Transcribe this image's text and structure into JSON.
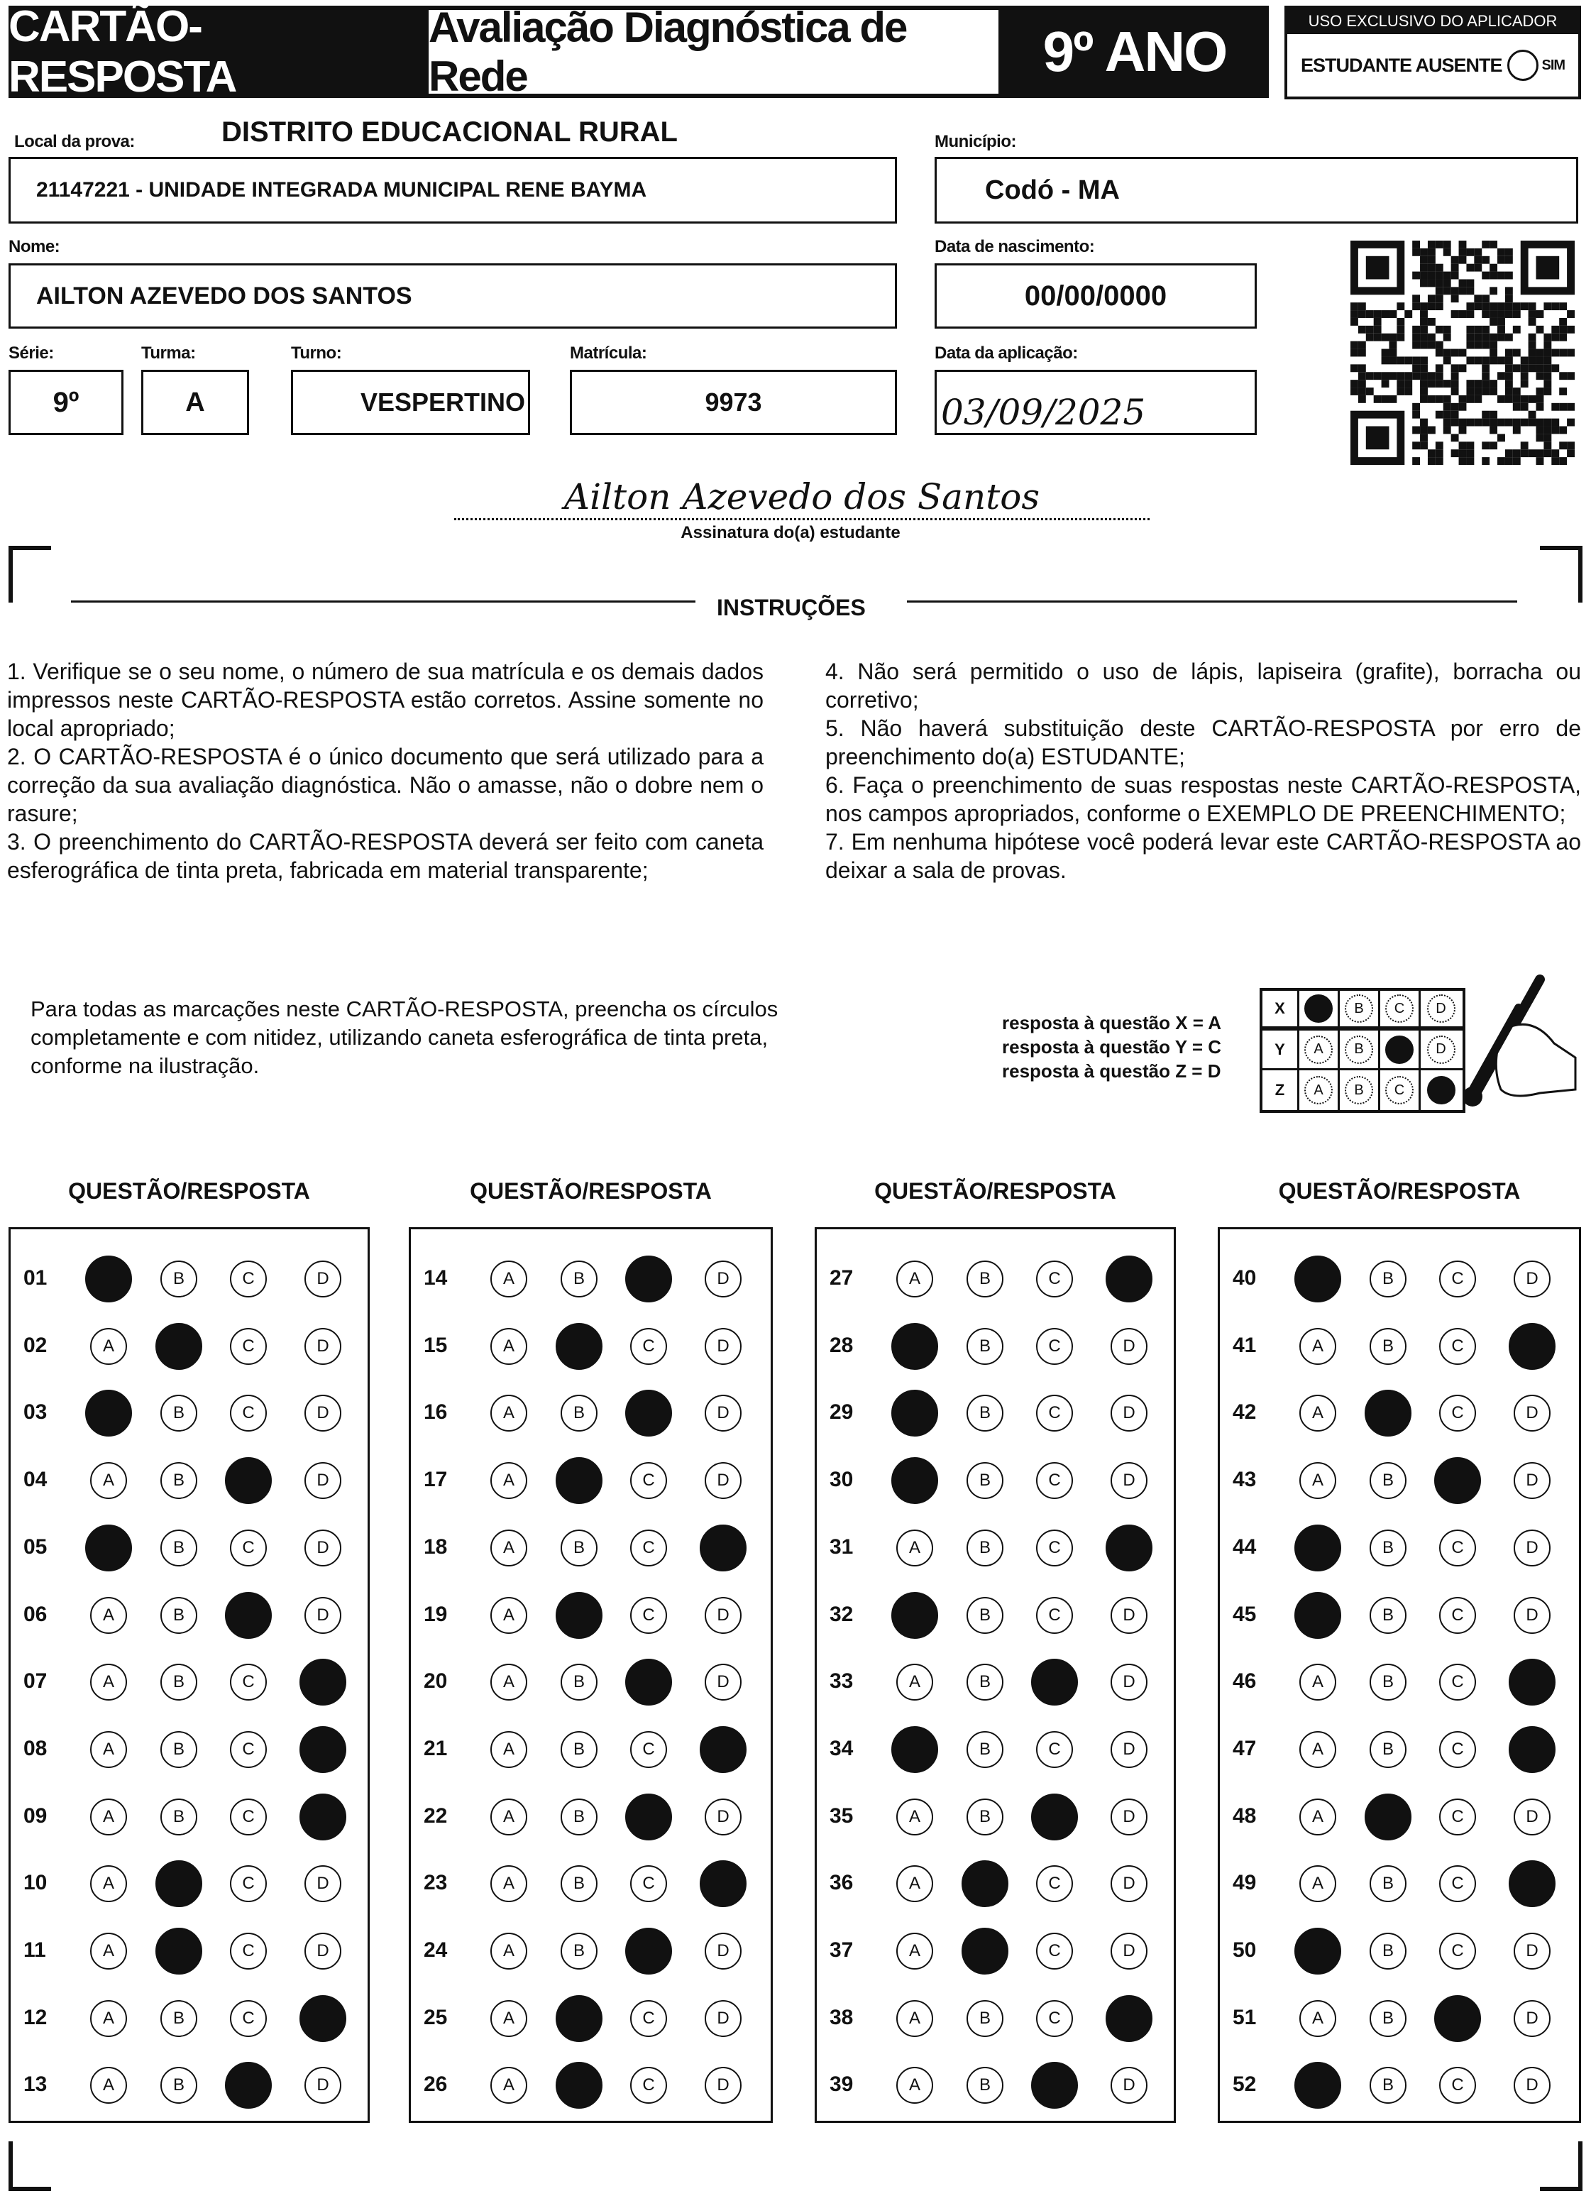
{
  "header": {
    "card_label": "CARTÃO-RESPOSTA",
    "title": "Avaliação Diagnóstica de Rede",
    "grade": "9º ANO",
    "applicator": {
      "title": "USO EXCLUSIVO DO APLICADOR",
      "absent_label": "ESTUDANTE AUSENTE",
      "option": "SIM"
    }
  },
  "fields": {
    "district": "DISTRITO EDUCACIONAL RURAL",
    "local_label": "Local da prova:",
    "local_value": "21147221 - UNIDADE INTEGRADA MUNICIPAL RENE BAYMA",
    "municipio_label": "Município:",
    "municipio_value": "Codó - MA",
    "nome_label": "Nome:",
    "nome_value": "AILTON AZEVEDO DOS SANTOS",
    "nascimento_label": "Data de nascimento:",
    "nascimento_value": "00/00/0000",
    "serie_label": "Série:",
    "serie_value": "9º",
    "turma_label": "Turma:",
    "turma_value": "A",
    "turno_label": "Turno:",
    "turno_value": "VESPERTINO",
    "matricula_label": "Matrícula:",
    "matricula_value": "9973",
    "aplicacao_label": "Data da aplicação:",
    "aplicacao_value": "03/09/2025"
  },
  "signature": {
    "value": "Ailton Azevedo dos Santos",
    "label": "Assinatura do(a) estudante"
  },
  "instructions": {
    "title": "INSTRUÇÕES",
    "left": [
      "1. Verifique se o seu nome, o número de sua matrícula e os demais dados impressos neste CARTÃO-RESPOSTA estão corretos. Assine somente no local apropriado;",
      "2. O CARTÃO-RESPOSTA é o único documento que será utilizado para a correção da sua avaliação diagnóstica. Não o amasse, não o dobre nem o rasure;",
      "3. O preenchimento do CARTÃO-RESPOSTA deverá ser feito com caneta esferográfica de tinta preta, fabricada em material transparente;"
    ],
    "right": [
      "4. Não será permitido o uso de lápis, lapiseira (grafite), borracha ou corretivo;",
      "5. Não haverá substituição deste CARTÃO-RESPOSTA por erro de preenchimento do(a) ESTUDANTE;",
      "6. Faça o preenchimento de suas respostas neste CARTÃO-RESPOSTA, nos campos apropriados, conforme o EXEMPLO DE PREENCHIMENTO;",
      "7. Em nenhuma hipótese você poderá levar este CARTÃO-RESPOSTA ao deixar a sala de provas."
    ]
  },
  "example": {
    "text": "Para todas as marcações neste CARTÃO-RESPOSTA, preencha os círculos completamente e com nitidez, utilizando caneta esferográfica de tinta preta, conforme na ilustração.",
    "lines": [
      "resposta à questão X = A",
      "resposta à questão Y = C",
      "resposta à questão Z = D"
    ],
    "rows": [
      {
        "q": "X",
        "marked": "A"
      },
      {
        "q": "Y",
        "marked": "C"
      },
      {
        "q": "Z",
        "marked": "D"
      }
    ]
  },
  "options": [
    "A",
    "B",
    "C",
    "D"
  ],
  "answer_columns": [
    {
      "header": "QUESTÃO/RESPOSTA",
      "items": [
        {
          "q": "01",
          "marked": "A"
        },
        {
          "q": "02",
          "marked": "B"
        },
        {
          "q": "03",
          "marked": "A"
        },
        {
          "q": "04",
          "marked": "C"
        },
        {
          "q": "05",
          "marked": "A"
        },
        {
          "q": "06",
          "marked": "C"
        },
        {
          "q": "07",
          "marked": "D"
        },
        {
          "q": "08",
          "marked": "D"
        },
        {
          "q": "09",
          "marked": "D"
        },
        {
          "q": "10",
          "marked": "B"
        },
        {
          "q": "11",
          "marked": "B"
        },
        {
          "q": "12",
          "marked": "D"
        },
        {
          "q": "13",
          "marked": "C"
        }
      ]
    },
    {
      "header": "QUESTÃO/RESPOSTA",
      "items": [
        {
          "q": "14",
          "marked": "C"
        },
        {
          "q": "15",
          "marked": "B"
        },
        {
          "q": "16",
          "marked": "C"
        },
        {
          "q": "17",
          "marked": "B"
        },
        {
          "q": "18",
          "marked": "D"
        },
        {
          "q": "19",
          "marked": "B"
        },
        {
          "q": "20",
          "marked": "C"
        },
        {
          "q": "21",
          "marked": "D"
        },
        {
          "q": "22",
          "marked": "C"
        },
        {
          "q": "23",
          "marked": "D"
        },
        {
          "q": "24",
          "marked": "C"
        },
        {
          "q": "25",
          "marked": "B"
        },
        {
          "q": "26",
          "marked": "B"
        }
      ]
    },
    {
      "header": "QUESTÃO/RESPOSTA",
      "items": [
        {
          "q": "27",
          "marked": "D"
        },
        {
          "q": "28",
          "marked": "A"
        },
        {
          "q": "29",
          "marked": "A"
        },
        {
          "q": "30",
          "marked": "A"
        },
        {
          "q": "31",
          "marked": "D"
        },
        {
          "q": "32",
          "marked": "A"
        },
        {
          "q": "33",
          "marked": "C"
        },
        {
          "q": "34",
          "marked": "A"
        },
        {
          "q": "35",
          "marked": "C"
        },
        {
          "q": "36",
          "marked": "B"
        },
        {
          "q": "37",
          "marked": "B"
        },
        {
          "q": "38",
          "marked": "D"
        },
        {
          "q": "39",
          "marked": "C"
        }
      ]
    },
    {
      "header": "QUESTÃO/RESPOSTA",
      "items": [
        {
          "q": "40",
          "marked": "A"
        },
        {
          "q": "41",
          "marked": "D"
        },
        {
          "q": "42",
          "marked": "B"
        },
        {
          "q": "43",
          "marked": "C"
        },
        {
          "q": "44",
          "marked": "A"
        },
        {
          "q": "45",
          "marked": "A"
        },
        {
          "q": "46",
          "marked": "D"
        },
        {
          "q": "47",
          "marked": "D"
        },
        {
          "q": "48",
          "marked": "B"
        },
        {
          "q": "49",
          "marked": "D"
        },
        {
          "q": "50",
          "marked": "A"
        },
        {
          "q": "51",
          "marked": "C"
        },
        {
          "q": "52",
          "marked": "A"
        }
      ]
    }
  ]
}
